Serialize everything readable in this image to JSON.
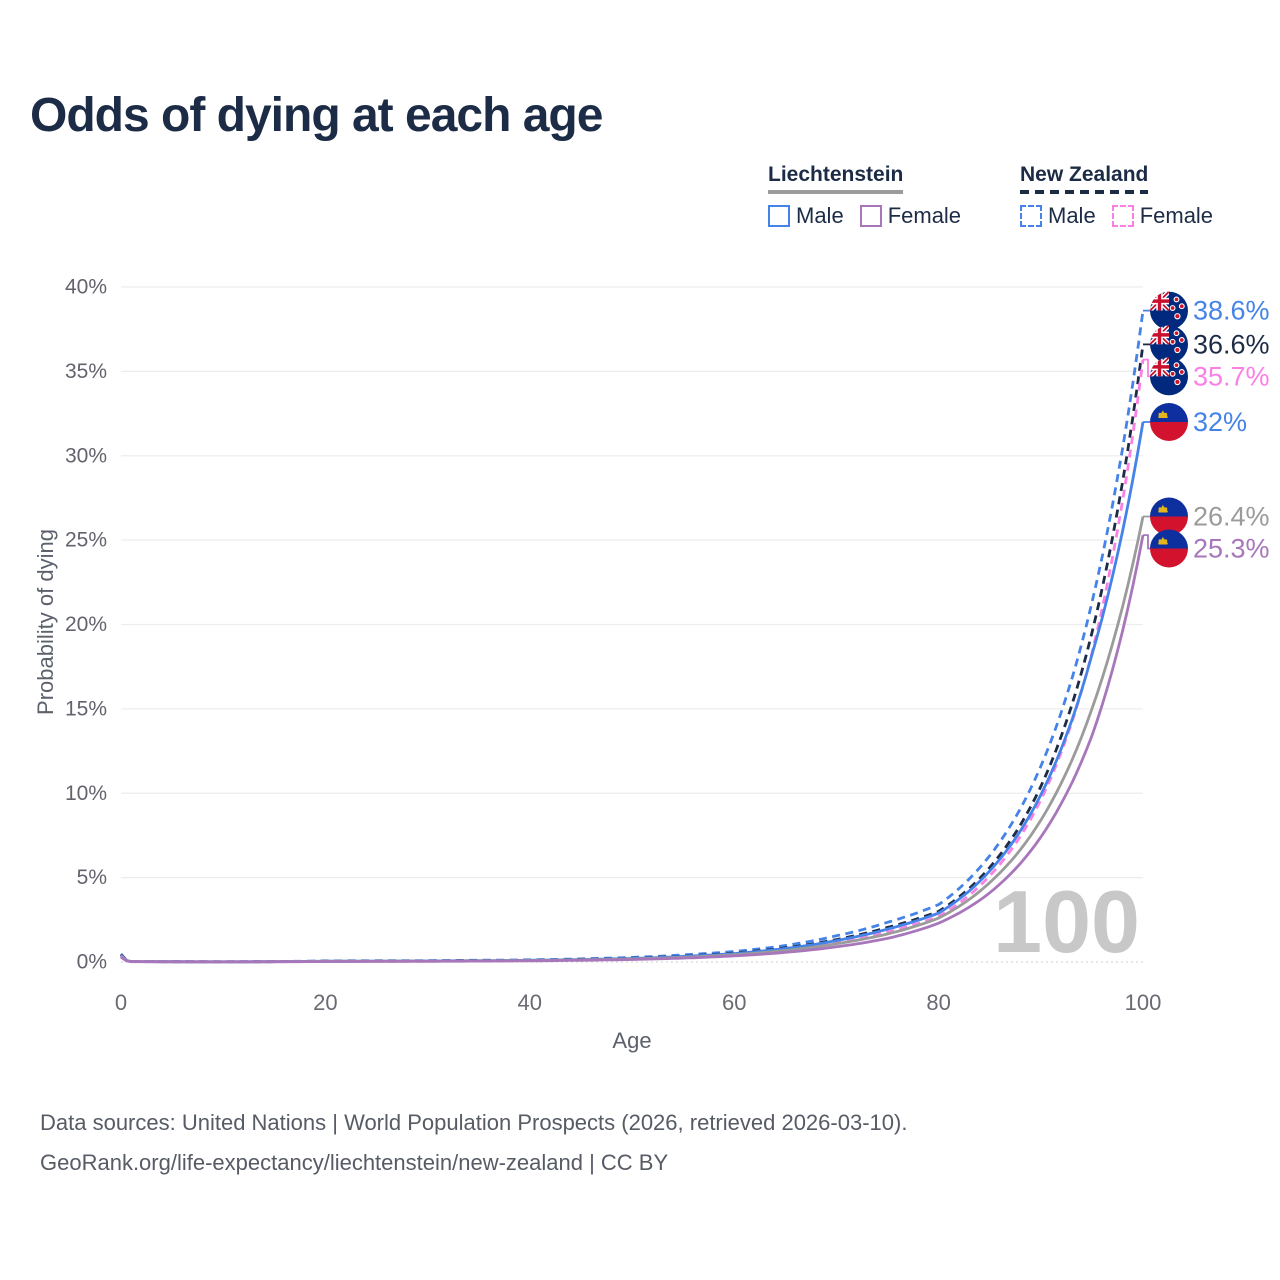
{
  "title": "Odds of dying at each age",
  "watermark": "100",
  "legend": {
    "groups": [
      {
        "name": "Liechtenstein",
        "underline_style": "solid",
        "underline_color": "#9b9b9b",
        "items": [
          {
            "label": "Male",
            "color": "#4583e8",
            "dashed": false
          },
          {
            "label": "Female",
            "color": "#a876ba",
            "dashed": false
          }
        ]
      },
      {
        "name": "New Zealand",
        "underline_style": "dashed",
        "underline_color": "#1d2c46",
        "items": [
          {
            "label": "Male",
            "color": "#4583e8",
            "dashed": true
          },
          {
            "label": "Female",
            "color": "#fb80e6",
            "dashed": true
          }
        ]
      }
    ]
  },
  "chart_data": {
    "type": "line",
    "title": "Odds of dying at each age",
    "xlabel": "Age",
    "ylabel": "Probability of dying",
    "xlim": [
      0,
      100
    ],
    "ylim": [
      0,
      40
    ],
    "grid": true,
    "x_ticks": [
      0,
      20,
      40,
      60,
      80,
      100
    ],
    "y_ticks": [
      {
        "value": 0,
        "label": "0%"
      },
      {
        "value": 5,
        "label": "5%"
      },
      {
        "value": 10,
        "label": "10%"
      },
      {
        "value": 15,
        "label": "15%"
      },
      {
        "value": 20,
        "label": "20%"
      },
      {
        "value": 25,
        "label": "25%"
      },
      {
        "value": 30,
        "label": "30%"
      },
      {
        "value": 35,
        "label": "35%"
      },
      {
        "value": 40,
        "label": "40%"
      }
    ],
    "x": [
      0,
      1,
      10,
      20,
      30,
      40,
      50,
      55,
      60,
      65,
      70,
      75,
      80,
      85,
      90,
      95,
      100
    ],
    "series": [
      {
        "name": "New Zealand Male",
        "color": "#4583e8",
        "dash": true,
        "flag": "nz",
        "end_label": "38.6%",
        "values": [
          0.48,
          0.035,
          0.012,
          0.065,
          0.085,
          0.125,
          0.27,
          0.42,
          0.62,
          0.98,
          1.55,
          2.35,
          3.4,
          6.3,
          11.6,
          21.3,
          38.6
        ]
      },
      {
        "name": "New Zealand Both sexes",
        "color": "#1d2c46",
        "dash": true,
        "flag": "nz",
        "end_label": "36.6%",
        "values": [
          0.44,
          0.03,
          0.01,
          0.048,
          0.065,
          0.105,
          0.22,
          0.35,
          0.53,
          0.84,
          1.33,
          2.05,
          3.0,
          5.6,
          10.4,
          19.5,
          36.6
        ]
      },
      {
        "name": "New Zealand Female",
        "color": "#fb80e6",
        "dash": true,
        "flag": "nz",
        "end_label": "35.7%",
        "values": [
          0.4,
          0.028,
          0.009,
          0.033,
          0.048,
          0.085,
          0.18,
          0.28,
          0.44,
          0.7,
          1.12,
          1.78,
          2.7,
          5.1,
          9.6,
          18.3,
          35.7
        ]
      },
      {
        "name": "Liechtenstein Male",
        "color": "#4583e8",
        "dash": false,
        "flag": "li",
        "end_label": "32%",
        "values": [
          0.36,
          0.027,
          0.01,
          0.046,
          0.062,
          0.1,
          0.21,
          0.33,
          0.5,
          0.8,
          1.27,
          1.95,
          2.9,
          5.4,
          9.9,
          18.2,
          32.0
        ]
      },
      {
        "name": "Liechtenstein Both sexes",
        "color": "#9b9b9b",
        "dash": false,
        "flag": "li",
        "end_label": "26.4%",
        "values": [
          0.33,
          0.024,
          0.009,
          0.038,
          0.053,
          0.085,
          0.18,
          0.28,
          0.43,
          0.68,
          1.08,
          1.66,
          2.6,
          4.7,
          8.4,
          15.0,
          26.4
        ]
      },
      {
        "name": "Liechtenstein Female",
        "color": "#a876ba",
        "dash": false,
        "flag": "li",
        "end_label": "25.3%",
        "values": [
          0.29,
          0.02,
          0.008,
          0.028,
          0.042,
          0.068,
          0.15,
          0.23,
          0.36,
          0.57,
          0.9,
          1.4,
          2.3,
          4.1,
          7.4,
          13.4,
          25.3
        ]
      }
    ],
    "legend_position": "top-right",
    "watermark_age": "100"
  },
  "footer": {
    "line1": "Data sources: United Nations | World Population Prospects (2026, retrieved 2026-03-10).",
    "line2": "GeoRank.org/life-expectancy/liechtenstein/new-zealand | CC BY"
  }
}
